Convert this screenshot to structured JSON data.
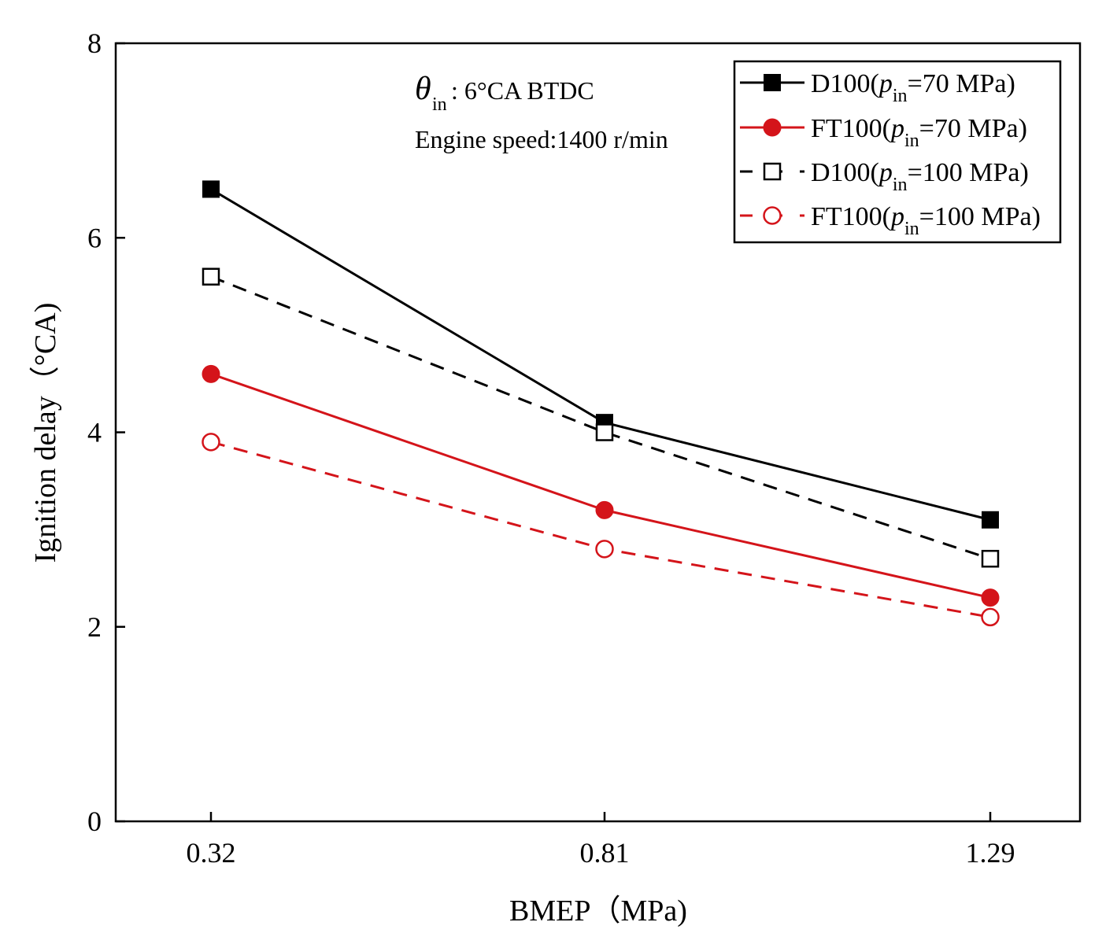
{
  "chart_data": {
    "type": "line",
    "title": "",
    "xlabel": "BMEP（MPa)",
    "ylabel": "Ignition delay（°CA)",
    "categories": [
      "0.32",
      "0.81",
      "1.29"
    ],
    "x": [
      0.32,
      0.81,
      1.29
    ],
    "ylim": [
      0,
      8
    ],
    "yticks": [
      "0",
      "2",
      "4",
      "6",
      "8"
    ],
    "grid": false,
    "legend_position": "top-right",
    "series": [
      {
        "name": "D100(p_in=70 MPa)",
        "legend_prefix": "D100(",
        "legend_sym": "p",
        "legend_sub": "in",
        "legend_suffix": "=70 MPa)",
        "values": [
          6.5,
          4.1,
          3.1
        ],
        "color": "#000000",
        "marker": "square-filled",
        "line": "solid"
      },
      {
        "name": "FT100(p_in=70 MPa)",
        "legend_prefix": "FT100(",
        "legend_sym": "p",
        "legend_sub": "in",
        "legend_suffix": "=70 MPa)",
        "values": [
          4.6,
          3.2,
          2.3
        ],
        "color": "#d4141a",
        "marker": "circle-filled",
        "line": "solid"
      },
      {
        "name": "D100(p_in=100 MPa)",
        "legend_prefix": "D100(",
        "legend_sym": "p",
        "legend_sub": "in",
        "legend_suffix": "=100 MPa)",
        "values": [
          5.6,
          4.0,
          2.7
        ],
        "color": "#000000",
        "marker": "square-open",
        "line": "dashed"
      },
      {
        "name": "FT100(p_in=100 MPa)",
        "legend_prefix": "FT100(",
        "legend_sym": "p",
        "legend_sub": "in",
        "legend_suffix": "=100 MPa)",
        "values": [
          3.9,
          2.8,
          2.1
        ],
        "color": "#d4141a",
        "marker": "circle-open",
        "line": "dashed"
      }
    ],
    "annotations": {
      "theta_symbol": "θ",
      "theta_sub": "in",
      "theta_text": ": 6°CA BTDC",
      "speed_text": "Engine speed:1400 r/min"
    }
  }
}
